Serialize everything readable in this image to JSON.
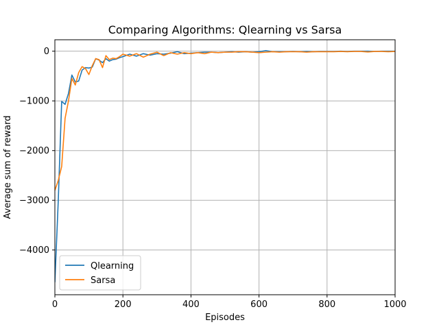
{
  "chart_data": {
    "type": "line",
    "title": "Comparing Algorithms: Qlearning vs Sarsa",
    "xlabel": "Episodes",
    "ylabel": "Average sum of reward",
    "xlim": [
      0,
      1000
    ],
    "ylim": [
      -4900,
      230
    ],
    "grid": true,
    "legend_position": "lower-left",
    "xticks": [
      0,
      200,
      400,
      600,
      800,
      1000
    ],
    "xtick_labels": [
      "0",
      "200",
      "400",
      "600",
      "800",
      "1000"
    ],
    "yticks": [
      0,
      -1000,
      -2000,
      -3000,
      -4000
    ],
    "ytick_labels": [
      "0",
      "−1000",
      "−2000",
      "−3000",
      "−4000"
    ],
    "series": [
      {
        "name": "Qlearning",
        "color": "#1f77b4",
        "x": [
          0,
          10,
          20,
          30,
          40,
          50,
          60,
          70,
          80,
          90,
          100,
          110,
          120,
          130,
          140,
          150,
          160,
          170,
          180,
          190,
          200,
          220,
          240,
          260,
          280,
          300,
          320,
          340,
          360,
          380,
          400,
          420,
          440,
          460,
          480,
          500,
          520,
          540,
          560,
          580,
          600,
          620,
          640,
          660,
          680,
          700,
          720,
          740,
          760,
          780,
          800,
          820,
          840,
          860,
          880,
          900,
          920,
          940,
          960,
          980,
          1000
        ],
        "values": [
          -4650,
          -3000,
          -1010,
          -1070,
          -850,
          -480,
          -620,
          -600,
          -380,
          -330,
          -340,
          -320,
          -150,
          -180,
          -230,
          -150,
          -200,
          -170,
          -160,
          -130,
          -110,
          -60,
          -100,
          -50,
          -80,
          -50,
          -60,
          -40,
          -10,
          -50,
          -40,
          -30,
          -20,
          -20,
          -30,
          -20,
          -10,
          -20,
          -10,
          -20,
          -10,
          10,
          -10,
          -10,
          -10,
          -5,
          -10,
          -5,
          -10,
          -5,
          -5,
          -5,
          0,
          -5,
          0,
          0,
          0,
          -5,
          0,
          0,
          0
        ]
      },
      {
        "name": "Sarsa",
        "color": "#ff7f0e",
        "x": [
          0,
          10,
          20,
          30,
          40,
          50,
          60,
          70,
          80,
          90,
          100,
          110,
          120,
          130,
          140,
          150,
          160,
          170,
          180,
          190,
          200,
          220,
          240,
          260,
          280,
          300,
          320,
          340,
          360,
          380,
          400,
          420,
          440,
          460,
          480,
          500,
          520,
          540,
          560,
          580,
          600,
          620,
          640,
          660,
          680,
          700,
          720,
          740,
          760,
          780,
          800,
          820,
          840,
          860,
          880,
          900,
          920,
          940,
          960,
          980,
          1000
        ],
        "values": [
          -2800,
          -2600,
          -2320,
          -1350,
          -1000,
          -550,
          -680,
          -430,
          -310,
          -350,
          -470,
          -290,
          -150,
          -170,
          -330,
          -90,
          -170,
          -140,
          -150,
          -110,
          -60,
          -100,
          -50,
          -120,
          -60,
          -20,
          -90,
          -30,
          -60,
          -30,
          -50,
          -30,
          -50,
          -20,
          -30,
          -20,
          -20,
          -10,
          -10,
          -20,
          -30,
          -20,
          -10,
          -20,
          -10,
          -10,
          -10,
          -20,
          -10,
          -10,
          -10,
          -10,
          -5,
          -10,
          -5,
          -5,
          -15,
          -5,
          -5,
          -10,
          -5
        ]
      }
    ]
  }
}
